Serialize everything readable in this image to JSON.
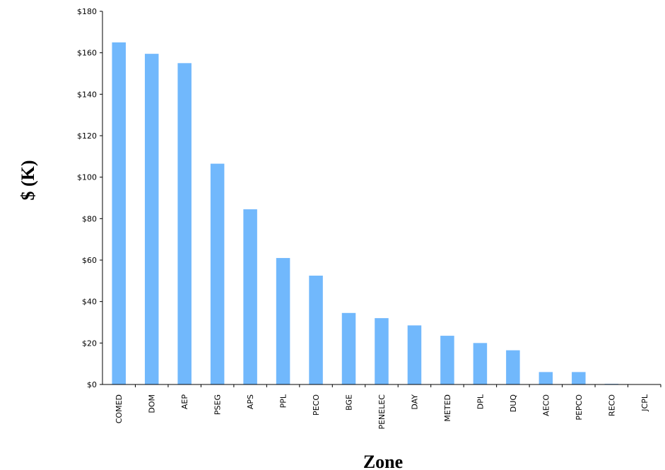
{
  "chart_data": {
    "type": "bar",
    "title": "",
    "xlabel": "Zone",
    "ylabel": "$ (K)",
    "ylim": [
      0,
      180
    ],
    "y_ticks": [
      "$0",
      "$20",
      "$40",
      "$60",
      "$80",
      "$100",
      "$120",
      "$140",
      "$160",
      "$180"
    ],
    "grid": false,
    "bar_color": "#71b8fc",
    "categories": [
      "COMED",
      "DOM",
      "AEP",
      "PSEG",
      "APS",
      "PPL",
      "PECO",
      "BGE",
      "PENELEC",
      "DAY",
      "METED",
      "DPL",
      "DUQ",
      "AECO",
      "PEPCO",
      "RECO",
      "JCPL"
    ],
    "values": [
      165,
      159.5,
      155,
      106.5,
      84.5,
      61,
      52.5,
      34.5,
      32,
      28.5,
      23.5,
      20,
      16.5,
      6,
      6,
      0.3,
      0.1
    ]
  }
}
